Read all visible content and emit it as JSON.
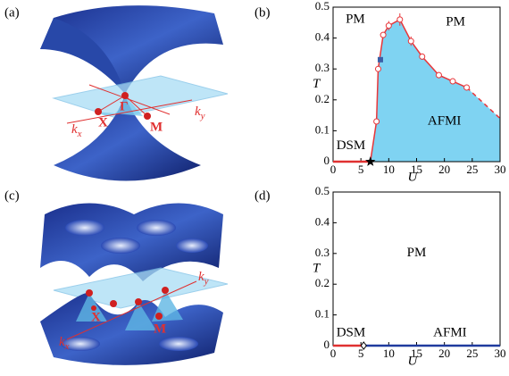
{
  "panels": {
    "a": {
      "label": "(a)",
      "gamma": "Γ",
      "x": "X",
      "m": "M",
      "kx": {
        "base": "k",
        "sub": "x"
      },
      "ky": {
        "base": "k",
        "sub": "y"
      }
    },
    "c": {
      "label": "(c)",
      "x": "X",
      "m": "M",
      "kx": {
        "base": "k",
        "sub": "x"
      },
      "ky": {
        "base": "k",
        "sub": "y"
      }
    }
  },
  "chart_data": [
    {
      "type": "line",
      "panel_label": "(b)",
      "x_label": "U",
      "y_label": "T",
      "xlim": [
        0,
        30
      ],
      "xticks": [
        0,
        5,
        10,
        15,
        20,
        25,
        30
      ],
      "ylim": [
        0,
        0.5
      ],
      "yticks": [
        0,
        0.1,
        0.2,
        0.3,
        0.4,
        0.5
      ],
      "annotations": [
        "PM",
        "PM",
        "AFMI",
        "DSM"
      ],
      "transition": {
        "color": "#e8363a",
        "x": [
          7.8,
          8.1,
          9,
          10,
          12,
          14,
          16,
          19,
          21.5,
          24
        ],
        "y": [
          0.13,
          0.3,
          0.41,
          0.44,
          0.46,
          0.39,
          0.34,
          0.28,
          0.26,
          0.24
        ],
        "errors": [
          0.01,
          0.01,
          0.01,
          0.015,
          0.02,
          0.015,
          0.01,
          0.01,
          0.01,
          0.01
        ]
      },
      "extra_point": {
        "x": 8.5,
        "y": 0.33,
        "color": "#3a5fa8"
      },
      "dashed": {
        "x": [
          24,
          27,
          30
        ],
        "y": [
          0.24,
          0.19,
          0.14
        ]
      },
      "fill_color": "#7fd3f2",
      "dsm_line": {
        "color": "#e03030",
        "x": [
          0,
          6.7
        ],
        "y": [
          0,
          0
        ]
      },
      "critical_point": {
        "x": 6.7,
        "y": 0,
        "shape": "star"
      }
    },
    {
      "type": "line",
      "panel_label": "(d)",
      "x_label": "U",
      "y_label": "T",
      "xlim": [
        0,
        30
      ],
      "xticks": [
        0,
        5,
        10,
        15,
        20,
        25,
        30
      ],
      "ylim": [
        0,
        0.5
      ],
      "yticks": [
        0,
        0.1,
        0.2,
        0.3,
        0.4,
        0.5
      ],
      "annotations": [
        "PM",
        "AFMI",
        "DSM"
      ],
      "dsm_line": {
        "color": "#e03030",
        "x": [
          0,
          5.5
        ],
        "y": [
          0,
          0
        ]
      },
      "afmi_line": {
        "color": "#1f3a9e",
        "x": [
          5.5,
          30
        ],
        "y": [
          0,
          0
        ]
      },
      "critical_point": {
        "x": 5.5,
        "y": 0,
        "shape": "diamond"
      }
    }
  ]
}
